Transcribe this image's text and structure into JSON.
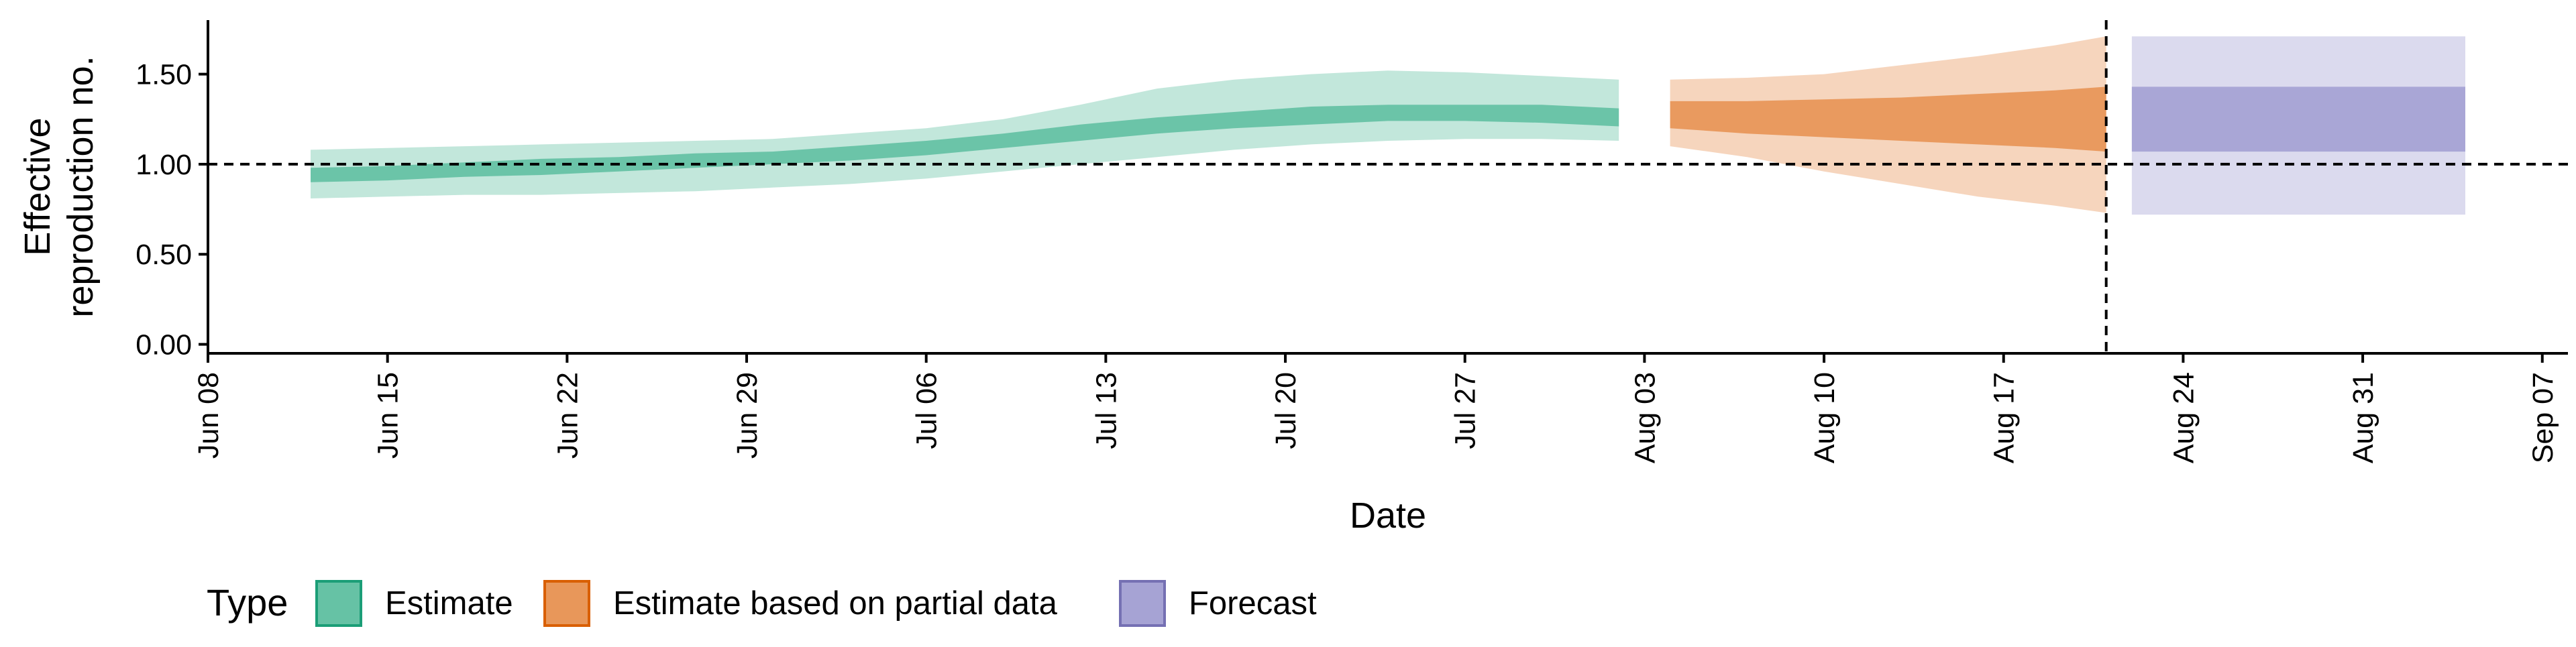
{
  "chart_data": {
    "type": "area",
    "xlabel": "Date",
    "ylabel": [
      "Effective",
      "reproduction no."
    ],
    "ylim": [
      -0.05,
      1.8
    ],
    "xlim": [
      "2020-06-08",
      "2020-09-08"
    ],
    "yticks": [
      0.0,
      0.5,
      1.0,
      1.5
    ],
    "ytick_labels": [
      "0.00",
      "0.50",
      "1.00",
      "1.50"
    ],
    "xticks": [
      "2020-06-08",
      "2020-06-15",
      "2020-06-22",
      "2020-06-29",
      "2020-07-06",
      "2020-07-13",
      "2020-07-20",
      "2020-07-27",
      "2020-08-03",
      "2020-08-10",
      "2020-08-17",
      "2020-08-24",
      "2020-08-31",
      "2020-09-07"
    ],
    "xtick_labels": [
      "Jun 08",
      "Jun 15",
      "Jun 22",
      "Jun 29",
      "Jul 06",
      "Jul 13",
      "Jul 20",
      "Jul 27",
      "Aug 03",
      "Aug 10",
      "Aug 17",
      "Aug 24",
      "Aug 31",
      "Sep 07"
    ],
    "reference_hline": 1.0,
    "reference_vline": "2020-08-21",
    "grid": false,
    "legend": {
      "title": "Type",
      "position": "bottom-left",
      "entries": [
        {
          "label": "Estimate",
          "fill": "#66c2a5",
          "border": "#1b9e77"
        },
        {
          "label": "Estimate based on partial data",
          "fill": "#e8975a",
          "border": "#d95f02"
        },
        {
          "label": "Forecast",
          "fill": "#a6a3d4",
          "border": "#7570b3"
        }
      ]
    },
    "series": [
      {
        "name": "Estimate",
        "color": "#66c2a5",
        "dates": [
          "2020-06-12",
          "2020-06-15",
          "2020-06-18",
          "2020-06-21",
          "2020-06-24",
          "2020-06-27",
          "2020-06-30",
          "2020-07-03",
          "2020-07-06",
          "2020-07-09",
          "2020-07-12",
          "2020-07-15",
          "2020-07-18",
          "2020-07-21",
          "2020-07-24",
          "2020-07-27",
          "2020-07-30",
          "2020-08-02"
        ],
        "ci90_lower": [
          0.81,
          0.82,
          0.83,
          0.83,
          0.84,
          0.85,
          0.87,
          0.89,
          0.92,
          0.96,
          1.0,
          1.04,
          1.08,
          1.11,
          1.13,
          1.14,
          1.14,
          1.13
        ],
        "ci90_upper": [
          1.08,
          1.09,
          1.1,
          1.11,
          1.12,
          1.13,
          1.14,
          1.17,
          1.2,
          1.25,
          1.33,
          1.42,
          1.47,
          1.5,
          1.52,
          1.51,
          1.49,
          1.47
        ],
        "ci50_lower": [
          0.9,
          0.91,
          0.93,
          0.94,
          0.96,
          0.98,
          1.0,
          1.02,
          1.05,
          1.09,
          1.13,
          1.17,
          1.2,
          1.22,
          1.24,
          1.24,
          1.23,
          1.21
        ],
        "ci50_upper": [
          0.98,
          0.99,
          1.01,
          1.03,
          1.04,
          1.06,
          1.07,
          1.1,
          1.13,
          1.17,
          1.22,
          1.26,
          1.29,
          1.32,
          1.33,
          1.33,
          1.33,
          1.31
        ]
      },
      {
        "name": "Estimate based on partial data",
        "color": "#e8975a",
        "dates": [
          "2020-08-04",
          "2020-08-07",
          "2020-08-10",
          "2020-08-13",
          "2020-08-16",
          "2020-08-19",
          "2020-08-21"
        ],
        "ci90_lower": [
          1.1,
          1.04,
          0.96,
          0.89,
          0.82,
          0.77,
          0.73
        ],
        "ci90_upper": [
          1.47,
          1.48,
          1.5,
          1.55,
          1.6,
          1.66,
          1.71
        ],
        "ci50_lower": [
          1.2,
          1.17,
          1.15,
          1.13,
          1.11,
          1.09,
          1.07
        ],
        "ci50_upper": [
          1.35,
          1.35,
          1.36,
          1.37,
          1.39,
          1.41,
          1.43
        ]
      },
      {
        "name": "Forecast",
        "color": "#a6a3d4",
        "dates": [
          "2020-08-22",
          "2020-09-04"
        ],
        "ci90_lower": [
          0.72,
          0.72
        ],
        "ci90_upper": [
          1.71,
          1.71
        ],
        "ci50_lower": [
          1.07,
          1.07
        ],
        "ci50_upper": [
          1.43,
          1.43
        ]
      }
    ]
  }
}
